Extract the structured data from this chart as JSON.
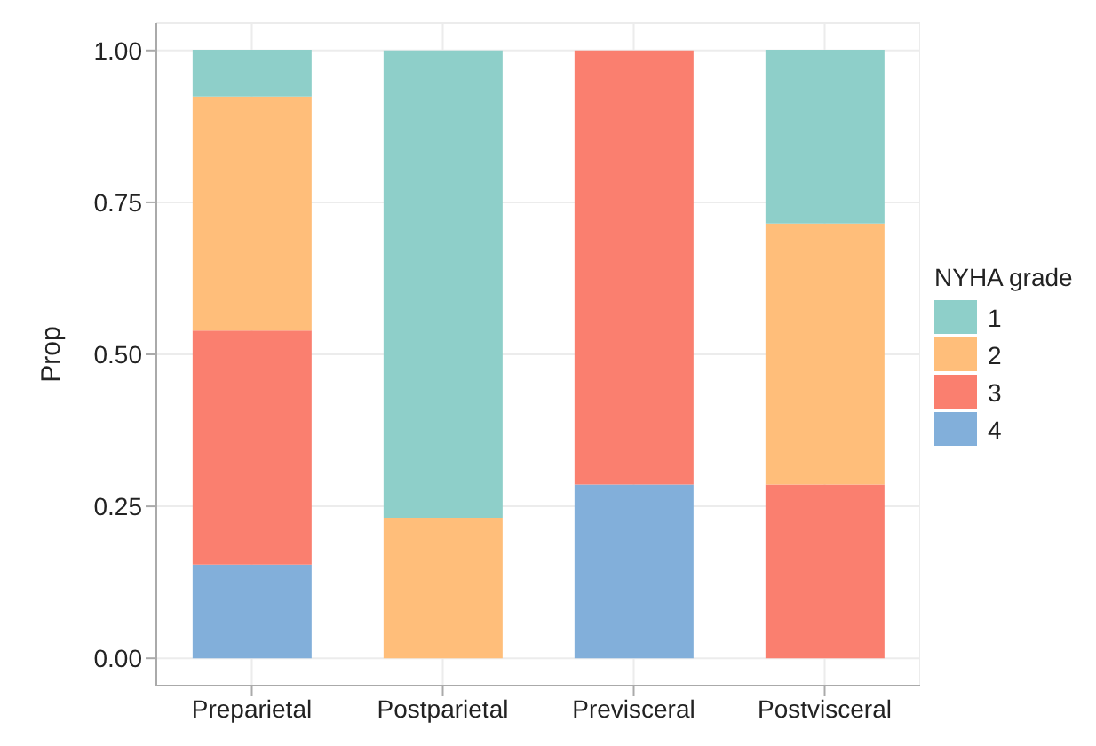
{
  "chart_data": {
    "type": "bar",
    "stacked": true,
    "ylabel": "Prop",
    "legend_title": "NYHA grade",
    "legend": "right",
    "grid": true,
    "categories": [
      "Preparietal",
      "Postparietal",
      "Previsceral",
      "Postvisceral"
    ],
    "series": [
      {
        "name": "4",
        "color": "#82afda",
        "values": [
          0.154,
          0,
          0.286,
          0
        ]
      },
      {
        "name": "3",
        "color": "#fa7f6f",
        "values": [
          0.385,
          0,
          0.714,
          0.286
        ]
      },
      {
        "name": "2",
        "color": "#ffbe7a",
        "values": [
          0.385,
          0.231,
          0,
          0.429
        ]
      },
      {
        "name": "1",
        "color": "#8ecfc9",
        "values": [
          0.077,
          0.769,
          0,
          0.286
        ]
      }
    ],
    "ylim": [
      -0.045,
      1.045
    ],
    "yticks": [
      {
        "value": 0,
        "label": "0.00"
      },
      {
        "value": 0.25,
        "label": "0.25"
      },
      {
        "value": 0.5,
        "label": "0.50"
      },
      {
        "value": 0.75,
        "label": "0.75"
      },
      {
        "value": 1,
        "label": "1.00"
      }
    ]
  }
}
